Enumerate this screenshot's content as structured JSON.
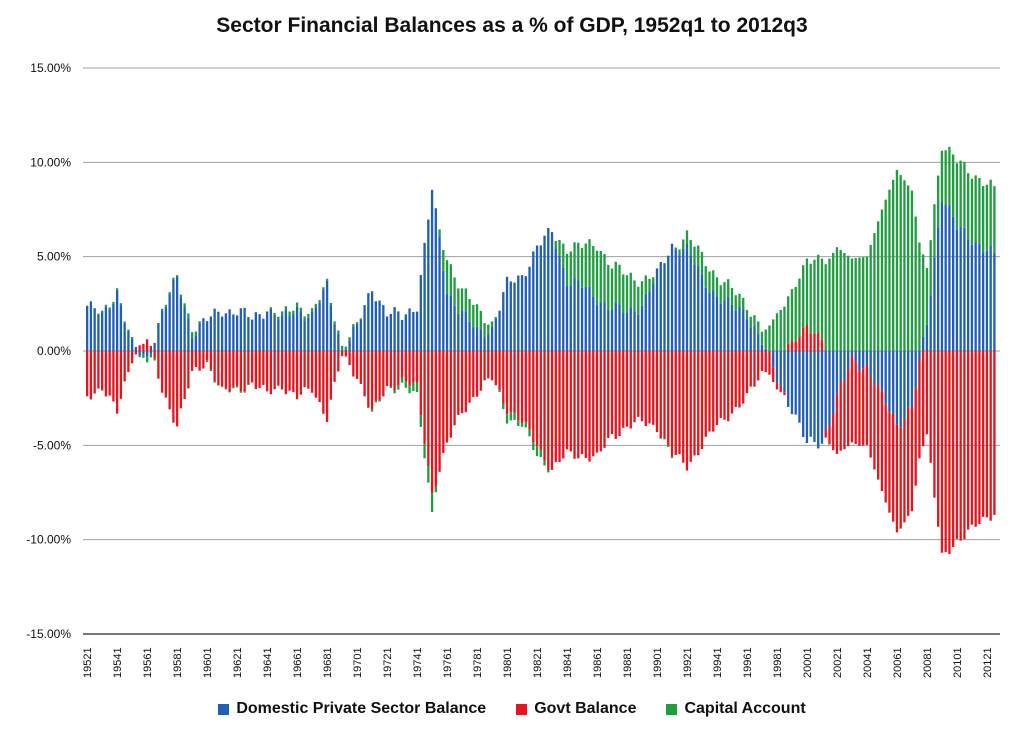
{
  "chart_data": {
    "type": "bar",
    "stacked": true,
    "title": "Sector Financial Balances as a % of GDP, 1952q1 to 2012q3",
    "y_axis": {
      "min": -15,
      "max": 15,
      "step": 5,
      "tick_labels": [
        "15.00%",
        "10.00%",
        "5.00%",
        "0.00%",
        "-5.00%",
        "-10.00%",
        "-15.00%"
      ],
      "grid": true
    },
    "x_axis": {
      "tick_labels": [
        "19521",
        "19541",
        "19561",
        "19581",
        "19601",
        "19621",
        "19641",
        "19661",
        "19681",
        "19701",
        "19721",
        "19741",
        "19761",
        "19781",
        "19801",
        "19821",
        "19841",
        "19861",
        "19881",
        "19901",
        "19921",
        "19941",
        "19961",
        "19981",
        "20001",
        "20021",
        "20041",
        "20061",
        "20081",
        "20101",
        "20121"
      ]
    },
    "period": {
      "start_year": 1952,
      "start_quarter": 1,
      "end_year": 2012,
      "end_quarter": 3
    },
    "series_colors": {
      "private": "#1f5fb4",
      "govt": "#e8141c",
      "capital": "#1e9e3e"
    },
    "series": [
      {
        "name": "Domestic Private Sector Balance",
        "key": "private"
      },
      {
        "name": "Govt Balance",
        "key": "govt"
      },
      {
        "name": "Capital Account",
        "key": "capital"
      }
    ],
    "keypoints": {
      "year": [
        1952,
        1953,
        1954,
        1955,
        1956,
        1957,
        1958,
        1959,
        1960,
        1961,
        1962,
        1963,
        1964,
        1965,
        1966,
        1967,
        1968,
        1969,
        1970,
        1971,
        1972,
        1973,
        1974,
        1975,
        1976,
        1977,
        1978,
        1979,
        1980,
        1981,
        1982,
        1983,
        1984,
        1985,
        1986,
        1987,
        1988,
        1989,
        1990,
        1991,
        1992,
        1993,
        1994,
        1995,
        1996,
        1997,
        1998,
        1999,
        2000,
        2001,
        2002,
        2003,
        2004,
        2005,
        2006,
        2007,
        2008,
        2009,
        2010,
        2011,
        2012.5
      ],
      "private": [
        2.4,
        1.8,
        3.2,
        0.2,
        -0.4,
        2.0,
        3.8,
        1.0,
        1.6,
        2.2,
        2.1,
        1.7,
        2.3,
        1.6,
        2.3,
        1.8,
        3.4,
        0.1,
        1.2,
        3.4,
        2.0,
        1.8,
        2.5,
        8.5,
        3.2,
        2.0,
        1.0,
        1.2,
        3.5,
        4.0,
        5.5,
        6.3,
        3.8,
        3.4,
        2.8,
        2.3,
        2.0,
        2.5,
        4.0,
        5.6,
        5.4,
        3.8,
        3.0,
        2.3,
        2.0,
        0.5,
        -1.5,
        -3.0,
        -5.0,
        -4.8,
        -2.5,
        -0.5,
        -0.8,
        -2.5,
        -3.8,
        -3.0,
        1.5,
        8.3,
        6.5,
        6.0,
        5.0
      ],
      "govt": [
        -2.4,
        -1.9,
        -3.3,
        -0.3,
        0.7,
        -2.1,
        -3.9,
        -1.3,
        -0.5,
        -2.2,
        -2.0,
        -1.7,
        -2.3,
        -1.8,
        -2.5,
        -2.0,
        -3.5,
        -0.3,
        -1.3,
        -3.3,
        -2.0,
        -1.5,
        -2.0,
        -7.5,
        -5.0,
        -3.2,
        -2.2,
        -1.5,
        -3.0,
        -3.8,
        -5.0,
        -6.3,
        -5.5,
        -5.5,
        -5.7,
        -4.5,
        -4.0,
        -3.8,
        -4.0,
        -5.5,
        -6.1,
        -5.0,
        -4.0,
        -3.2,
        -2.5,
        -1.2,
        -0.5,
        0.3,
        1.5,
        0.5,
        -3.0,
        -4.4,
        -4.2,
        -5.0,
        -5.8,
        -5.5,
        -4.5,
        -11.0,
        -10.0,
        -9.5,
        -8.5
      ],
      "capital": [
        0.0,
        0.1,
        0.1,
        0.1,
        -0.3,
        0.1,
        0.1,
        0.3,
        -0.1,
        0.0,
        -0.1,
        0.0,
        0.0,
        0.2,
        0.2,
        0.2,
        0.1,
        0.2,
        0.1,
        -0.1,
        0.0,
        -0.3,
        -0.5,
        -1.0,
        1.8,
        1.2,
        1.2,
        0.3,
        -0.5,
        -0.2,
        -0.5,
        0.0,
        1.7,
        2.1,
        2.9,
        2.2,
        2.0,
        1.3,
        0.0,
        -0.1,
        0.7,
        1.2,
        1.0,
        0.9,
        0.5,
        0.7,
        2.0,
        2.7,
        3.5,
        4.3,
        5.5,
        4.9,
        5.0,
        7.5,
        9.6,
        8.5,
        3.0,
        2.7,
        3.5,
        3.5,
        3.5
      ]
    }
  },
  "legend": {
    "items": [
      {
        "label": "Domestic Private Sector Balance",
        "color": "#1f5fb4"
      },
      {
        "label": "Govt Balance",
        "color": "#e8141c"
      },
      {
        "label": "Capital Account",
        "color": "#1e9e3e"
      }
    ]
  }
}
